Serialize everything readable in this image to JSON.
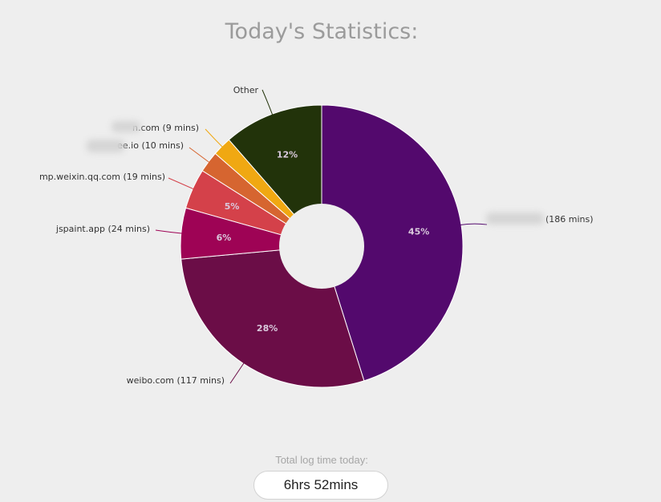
{
  "page": {
    "title": "Today's Statistics:",
    "total_label": "Total log time today:",
    "total_value": "6hrs 52mins"
  },
  "chart_data": {
    "type": "pie",
    "title": "Today's Statistics:",
    "donut": true,
    "slices": [
      {
        "label": "",
        "minutes": 186,
        "callout": "(186 mins)",
        "percent_label": "45%",
        "color": "#53096d",
        "redacted": true
      },
      {
        "label": "weibo.com",
        "minutes": 117,
        "callout": "weibo.com (117 mins)",
        "percent_label": "28%",
        "color": "#6b0d47"
      },
      {
        "label": "jspaint.app",
        "minutes": 24,
        "callout": "jspaint.app (24 mins)",
        "percent_label": "6%",
        "color": "#9e0355"
      },
      {
        "label": "mp.weixin.qq.com",
        "minutes": 19,
        "callout": "mp.weixin.qq.com (19 mins)",
        "percent_label": "5%",
        "color": "#d4414a"
      },
      {
        "label": "ee.io",
        "minutes": 10,
        "callout": "ee.io (10 mins)",
        "percent_label": "",
        "color": "#d66530",
        "redacted": true
      },
      {
        "label": "n.com",
        "minutes": 9,
        "callout": "n.com (9 mins)",
        "percent_label": "",
        "color": "#f0a812",
        "redacted": true
      },
      {
        "label": "Other",
        "minutes": 47,
        "callout": "Other",
        "percent_label": "12%",
        "color": "#22330a"
      }
    ]
  }
}
